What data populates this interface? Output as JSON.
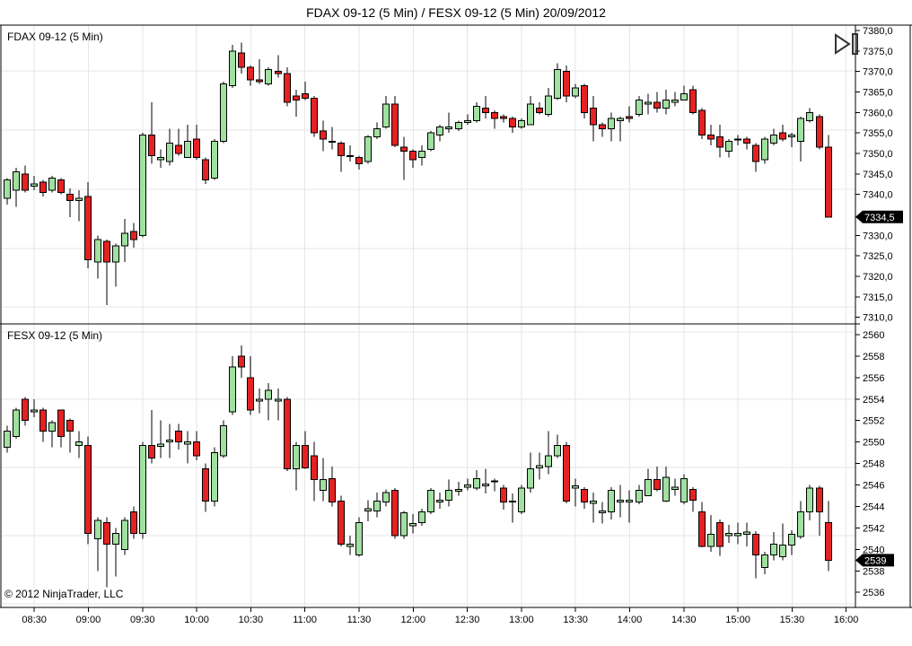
{
  "title": "FDAX 09-12 (5 Min) / FESX 09-12 (5 Min)  20/09/2012",
  "footer": {
    "copyright": "© 2012 NinjaTrader, LLC"
  },
  "icons": {
    "top_right": "go-to-last-bar-icon"
  },
  "colors": {
    "up": "#a0e0a0",
    "down": "#e52222",
    "outline": "#000000",
    "wick": "#000000",
    "grid": "#e6e6e6",
    "border": "#000000",
    "text": "#000000",
    "badge_bg": "#000000",
    "badge_text": "#ffffff",
    "background": "#ffffff"
  },
  "x_axis": {
    "labels": [
      "08:30",
      "09:00",
      "09:30",
      "10:00",
      "10:30",
      "11:00",
      "11:30",
      "12:00",
      "12:30",
      "13:00",
      "13:30",
      "14:00",
      "14:30",
      "15:00",
      "15:30",
      "16:00"
    ],
    "first_minutes": 30,
    "step_minutes": 30
  },
  "chart_data": [
    {
      "type": "candlestick",
      "symbol": "FDAX 09-12",
      "interval": "5 Min",
      "date": "20/09/2012",
      "title": "FDAX 09-12 (5 Min)",
      "start_time": "08:15",
      "step_minutes": 5,
      "ylim": [
        7308.4,
        7381.3
      ],
      "grid": true,
      "yticks": [
        {
          "value": 7380,
          "label": "7380,0"
        },
        {
          "value": 7375,
          "label": "7375,0"
        },
        {
          "value": 7370,
          "label": "7370,0"
        },
        {
          "value": 7365,
          "label": "7365,0"
        },
        {
          "value": 7360,
          "label": "7360,0"
        },
        {
          "value": 7355,
          "label": "7355,0"
        },
        {
          "value": 7350,
          "label": "7350,0"
        },
        {
          "value": 7345,
          "label": "7345,0"
        },
        {
          "value": 7340,
          "label": "7340,0"
        },
        {
          "value": 7330,
          "label": "7330,0"
        },
        {
          "value": 7325,
          "label": "7325,0"
        },
        {
          "value": 7320,
          "label": "7320,0"
        },
        {
          "value": 7315,
          "label": "7315,0"
        },
        {
          "value": 7310,
          "label": "7310,0"
        }
      ],
      "last_price": 7334.5,
      "last_price_label": "7334,5",
      "ohlc": [
        [
          7339,
          7344,
          7337.5,
          7343.5
        ],
        [
          7341,
          7346.5,
          7337,
          7345.5
        ],
        [
          7345,
          7347,
          7340.5,
          7341
        ],
        [
          7342,
          7344.5,
          7341,
          7342.5
        ],
        [
          7343,
          7343.5,
          7339.5,
          7340.5
        ],
        [
          7341,
          7344.5,
          7340.5,
          7344
        ],
        [
          7343.5,
          7344,
          7340,
          7340.5
        ],
        [
          7340,
          7341.5,
          7334.5,
          7338.5
        ],
        [
          7338.5,
          7341,
          7333.5,
          7339
        ],
        [
          7339.5,
          7343,
          7322,
          7324
        ],
        [
          7323.5,
          7330,
          7319.5,
          7329
        ],
        [
          7328.5,
          7329,
          7313,
          7323.5
        ],
        [
          7323.5,
          7328,
          7317.5,
          7327.5
        ],
        [
          7327.5,
          7334,
          7323.5,
          7330.5
        ],
        [
          7331,
          7333,
          7327,
          7329
        ],
        [
          7330,
          7355,
          7329.5,
          7354.5
        ],
        [
          7354.5,
          7362.5,
          7347.5,
          7349.5
        ],
        [
          7348.5,
          7351,
          7346.5,
          7349
        ],
        [
          7348,
          7356,
          7347,
          7352.5
        ],
        [
          7352,
          7356,
          7349.5,
          7350
        ],
        [
          7349,
          7357,
          7349,
          7353
        ],
        [
          7353.5,
          7357,
          7348.5,
          7349
        ],
        [
          7348.5,
          7349,
          7342.5,
          7343.5
        ],
        [
          7344,
          7353.5,
          7343.5,
          7353
        ],
        [
          7353,
          7367.5,
          7352.5,
          7367
        ],
        [
          7366.5,
          7376.5,
          7366,
          7375
        ],
        [
          7374.5,
          7377,
          7369.5,
          7371
        ],
        [
          7371,
          7371.5,
          7366.5,
          7368
        ],
        [
          7368,
          7373,
          7367,
          7367.5
        ],
        [
          7367,
          7371,
          7366.5,
          7370.5
        ],
        [
          7370,
          7374,
          7368.5,
          7369.5
        ],
        [
          7369.5,
          7371,
          7361.5,
          7362.5
        ],
        [
          7364,
          7365.5,
          7359,
          7363
        ],
        [
          7364.5,
          7367.5,
          7363,
          7363.5
        ],
        [
          7363.5,
          7364,
          7354,
          7355
        ],
        [
          7355.5,
          7358,
          7350.5,
          7353.5
        ],
        [
          7353,
          7356.5,
          7351,
          7353
        ],
        [
          7352.5,
          7353,
          7345.5,
          7349.5
        ],
        [
          7349.5,
          7352,
          7348,
          7349.5
        ],
        [
          7349,
          7349.5,
          7346,
          7347.5
        ],
        [
          7348,
          7354.5,
          7347.5,
          7354
        ],
        [
          7354,
          7357.5,
          7353.5,
          7356
        ],
        [
          7356.5,
          7364,
          7356,
          7362
        ],
        [
          7362,
          7364,
          7351.5,
          7352
        ],
        [
          7351.5,
          7354,
          7343.5,
          7350.5
        ],
        [
          7350.5,
          7351,
          7346.5,
          7348.5
        ],
        [
          7349,
          7352,
          7347,
          7350.5
        ],
        [
          7351,
          7355.5,
          7350.5,
          7355
        ],
        [
          7354.5,
          7357,
          7353,
          7356.5
        ],
        [
          7356,
          7360,
          7355,
          7356.5
        ],
        [
          7356,
          7358,
          7355.5,
          7357.5
        ],
        [
          7357.5,
          7359.5,
          7357,
          7358
        ],
        [
          7358,
          7362.5,
          7357.5,
          7361.5
        ],
        [
          7361,
          7364,
          7358.5,
          7360
        ],
        [
          7360,
          7360.5,
          7356,
          7358.5
        ],
        [
          7359,
          7359.5,
          7357.5,
          7358.5
        ],
        [
          7358.5,
          7359,
          7355,
          7356.5
        ],
        [
          7356.5,
          7358.5,
          7356,
          7358
        ],
        [
          7357,
          7364,
          7357,
          7362
        ],
        [
          7361,
          7362.5,
          7359.5,
          7360
        ],
        [
          7359.5,
          7366,
          7359,
          7364
        ],
        [
          7363.5,
          7372,
          7363,
          7370.5
        ],
        [
          7370,
          7371.5,
          7362.5,
          7364
        ],
        [
          7364,
          7367,
          7363.5,
          7366
        ],
        [
          7366.5,
          7367,
          7358.5,
          7360
        ],
        [
          7361,
          7364,
          7353,
          7357
        ],
        [
          7357,
          7357.5,
          7354,
          7356
        ],
        [
          7356,
          7360,
          7353,
          7358.5
        ],
        [
          7358,
          7359,
          7353,
          7358.5
        ],
        [
          7359,
          7361.5,
          7357.5,
          7358.5
        ],
        [
          7359.5,
          7364,
          7359,
          7363
        ],
        [
          7362,
          7364.5,
          7359.5,
          7362.5
        ],
        [
          7362.5,
          7365,
          7360,
          7361
        ],
        [
          7361,
          7365.5,
          7359.5,
          7363
        ],
        [
          7362.5,
          7365,
          7361.5,
          7363
        ],
        [
          7363,
          7366.5,
          7363,
          7364.5
        ],
        [
          7365.5,
          7366.5,
          7359.5,
          7360
        ],
        [
          7360.5,
          7361,
          7353.5,
          7354.5
        ],
        [
          7354.5,
          7357,
          7352,
          7353.5
        ],
        [
          7354,
          7357,
          7349,
          7351.5
        ],
        [
          7350.5,
          7353.5,
          7349,
          7353
        ],
        [
          7353.5,
          7354.5,
          7352,
          7353.5
        ],
        [
          7353.5,
          7354,
          7351,
          7352.5
        ],
        [
          7352,
          7352.5,
          7345.5,
          7348
        ],
        [
          7348.5,
          7354,
          7347.5,
          7353.5
        ],
        [
          7352.5,
          7356,
          7352,
          7354.5
        ],
        [
          7355,
          7357,
          7353,
          7353.5
        ],
        [
          7354,
          7355,
          7351.5,
          7354.5
        ],
        [
          7353,
          7359,
          7348,
          7358.5
        ],
        [
          7358,
          7361,
          7357.5,
          7360
        ],
        [
          7359,
          7359.5,
          7351,
          7351.5
        ],
        [
          7351.5,
          7354.5,
          7334.5,
          7334.5
        ]
      ]
    },
    {
      "type": "candlestick",
      "symbol": "FESX 09-12",
      "interval": "5 Min",
      "date": "20/09/2012",
      "title": "FESX 09-12 (5 Min)",
      "start_time": "08:15",
      "step_minutes": 5,
      "ylim": [
        2534.6,
        2561.0
      ],
      "grid": true,
      "yticks": [
        {
          "value": 2560,
          "label": "2560"
        },
        {
          "value": 2558,
          "label": "2558"
        },
        {
          "value": 2556,
          "label": "2556"
        },
        {
          "value": 2554,
          "label": "2554"
        },
        {
          "value": 2552,
          "label": "2552"
        },
        {
          "value": 2550,
          "label": "2550"
        },
        {
          "value": 2548,
          "label": "2548"
        },
        {
          "value": 2546,
          "label": "2546"
        },
        {
          "value": 2544,
          "label": "2544"
        },
        {
          "value": 2542,
          "label": "2542"
        },
        {
          "value": 2540,
          "label": "2540"
        },
        {
          "value": 2538,
          "label": "2538"
        },
        {
          "value": 2536,
          "label": "2536"
        }
      ],
      "last_price": 2539,
      "last_price_label": "2539",
      "ohlc": [
        [
          2549.5,
          2551.5,
          2549,
          2551
        ],
        [
          2550.5,
          2553.2,
          2550.3,
          2553
        ],
        [
          2554,
          2554.2,
          2551.5,
          2552
        ],
        [
          2552.8,
          2554,
          2552.3,
          2553
        ],
        [
          2553,
          2553.2,
          2550,
          2551
        ],
        [
          2551,
          2552,
          2549.5,
          2551.8
        ],
        [
          2553,
          2553,
          2549.5,
          2550.5
        ],
        [
          2552,
          2552.2,
          2549,
          2551
        ],
        [
          2549.7,
          2551,
          2548.5,
          2550
        ],
        [
          2549.7,
          2550.5,
          2540.5,
          2541.5
        ],
        [
          2541,
          2543,
          2538,
          2542.7
        ],
        [
          2542.5,
          2543,
          2536.5,
          2540.5
        ],
        [
          2540.5,
          2542,
          2537.5,
          2541.5
        ],
        [
          2540,
          2543,
          2539.5,
          2542.7
        ],
        [
          2543.5,
          2544,
          2541,
          2541.5
        ],
        [
          2541.5,
          2550,
          2541,
          2549.7
        ],
        [
          2549.7,
          2553,
          2548,
          2548.5
        ],
        [
          2549.6,
          2552,
          2548.5,
          2549.8
        ],
        [
          2550,
          2551.7,
          2548.5,
          2550.2
        ],
        [
          2551,
          2551.7,
          2549.3,
          2550
        ],
        [
          2549.8,
          2551,
          2548,
          2550
        ],
        [
          2550,
          2551,
          2548.3,
          2548.7
        ],
        [
          2547.5,
          2548,
          2543.5,
          2544.5
        ],
        [
          2544.5,
          2549.5,
          2544,
          2549
        ],
        [
          2548.7,
          2552,
          2548.5,
          2551.5
        ],
        [
          2552.8,
          2558,
          2552.5,
          2557
        ],
        [
          2558,
          2559,
          2556,
          2557
        ],
        [
          2556,
          2558,
          2552.5,
          2553
        ],
        [
          2553.8,
          2555,
          2552.7,
          2554
        ],
        [
          2554,
          2555.5,
          2552,
          2554.8
        ],
        [
          2553.8,
          2555,
          2552,
          2554
        ],
        [
          2554,
          2554.2,
          2547.3,
          2547.5
        ],
        [
          2547.5,
          2550,
          2545.5,
          2549.7
        ],
        [
          2549.7,
          2551,
          2547.5,
          2547.6
        ],
        [
          2548.7,
          2550,
          2544.5,
          2546.5
        ],
        [
          2545.5,
          2548.5,
          2544.5,
          2546.5
        ],
        [
          2546.6,
          2547.7,
          2544,
          2544.4
        ],
        [
          2544.5,
          2545,
          2540.3,
          2540.5
        ],
        [
          2540.3,
          2541.3,
          2539.5,
          2540.5
        ],
        [
          2539.5,
          2543,
          2539.3,
          2542.5
        ],
        [
          2543.6,
          2544.6,
          2542.6,
          2543.8
        ],
        [
          2543.6,
          2545.3,
          2543,
          2544.5
        ],
        [
          2544.4,
          2545.6,
          2544,
          2545.3
        ],
        [
          2545.5,
          2545.7,
          2541,
          2541.3
        ],
        [
          2541.3,
          2543.6,
          2541,
          2543.4
        ],
        [
          2542.2,
          2543.3,
          2541.5,
          2542.4
        ],
        [
          2542.5,
          2543.8,
          2542.2,
          2543.5
        ],
        [
          2543.5,
          2545.7,
          2543.3,
          2545.5
        ],
        [
          2544.4,
          2545.3,
          2543.8,
          2544.6
        ],
        [
          2544.6,
          2546.5,
          2544,
          2545.5
        ],
        [
          2545.4,
          2546.3,
          2545,
          2545.6
        ],
        [
          2545.8,
          2546.6,
          2545.5,
          2546
        ],
        [
          2545.7,
          2547.4,
          2545.5,
          2546.6
        ],
        [
          2545.9,
          2547.5,
          2545.2,
          2546.1
        ],
        [
          2546.3,
          2546.6,
          2545.4,
          2546.4
        ],
        [
          2545.7,
          2546,
          2543.7,
          2544.4
        ],
        [
          2544.4,
          2545.2,
          2542.5,
          2544.5
        ],
        [
          2543.5,
          2546,
          2543.3,
          2545.7
        ],
        [
          2545.7,
          2549,
          2545.3,
          2547.5
        ],
        [
          2547.6,
          2549,
          2546.5,
          2547.8
        ],
        [
          2547.7,
          2551,
          2547,
          2548.7
        ],
        [
          2548.7,
          2550.7,
          2548.5,
          2549.7
        ],
        [
          2549.7,
          2550,
          2544.3,
          2544.5
        ],
        [
          2545.7,
          2546.6,
          2544,
          2545.9
        ],
        [
          2545.6,
          2545.8,
          2543.8,
          2544.4
        ],
        [
          2544.3,
          2545.3,
          2542.5,
          2544.5
        ],
        [
          2543.4,
          2544.4,
          2542.4,
          2543.6
        ],
        [
          2543.5,
          2545.8,
          2542.8,
          2545.5
        ],
        [
          2544.4,
          2546,
          2543,
          2544.6
        ],
        [
          2544.4,
          2545.5,
          2542.5,
          2544.6
        ],
        [
          2544.4,
          2546,
          2544.2,
          2545.5
        ],
        [
          2545,
          2547.5,
          2545,
          2546.5
        ],
        [
          2546.5,
          2547.7,
          2545.4,
          2545.6
        ],
        [
          2544.5,
          2547.7,
          2544.4,
          2546.7
        ],
        [
          2545.6,
          2546.6,
          2545,
          2545.8
        ],
        [
          2544.4,
          2547,
          2544.2,
          2546.6
        ],
        [
          2545.6,
          2545.8,
          2543.5,
          2544.6
        ],
        [
          2543.5,
          2544.4,
          2540.2,
          2540.3
        ],
        [
          2540.3,
          2543.2,
          2539.8,
          2541.4
        ],
        [
          2542.5,
          2542.8,
          2539.4,
          2540.3
        ],
        [
          2541.3,
          2542.3,
          2540.6,
          2541.5
        ],
        [
          2541.3,
          2542.5,
          2540.5,
          2541.5
        ],
        [
          2541.4,
          2542.5,
          2540.3,
          2541.6
        ],
        [
          2541.4,
          2541.7,
          2537.3,
          2539.5
        ],
        [
          2538.3,
          2539.8,
          2537.7,
          2539.5
        ],
        [
          2539.5,
          2541.6,
          2539,
          2540.5
        ],
        [
          2539.3,
          2542.4,
          2539,
          2540.4
        ],
        [
          2540.4,
          2541.8,
          2539.5,
          2541.4
        ],
        [
          2541.2,
          2544.5,
          2541,
          2543.5
        ],
        [
          2543.5,
          2546,
          2542.7,
          2545.7
        ],
        [
          2545.7,
          2545.9,
          2541.3,
          2543.5
        ],
        [
          2542.5,
          2544.5,
          2538,
          2539
        ]
      ]
    }
  ]
}
